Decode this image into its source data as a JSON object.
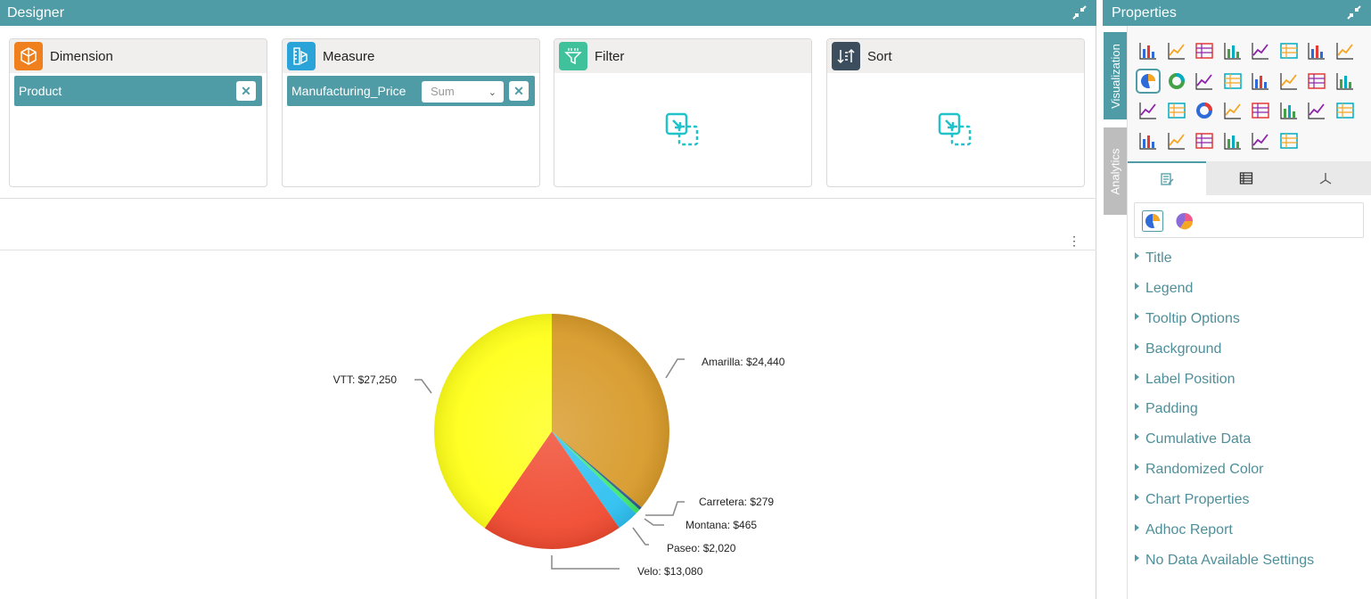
{
  "designer": {
    "title": "Designer",
    "wells": {
      "dimension": {
        "label": "Dimension",
        "field": "Product"
      },
      "measure": {
        "label": "Measure",
        "field": "Manufacturing_Price",
        "aggregate": "Sum"
      },
      "filter": {
        "label": "Filter"
      },
      "sort": {
        "label": "Sort"
      }
    },
    "remove_glyph": "✕",
    "kebab_glyph": "⋮"
  },
  "properties": {
    "title": "Properties",
    "side_tabs": [
      "Visualization",
      "Analytics"
    ],
    "items": [
      "Title",
      "Legend",
      "Tooltip Options",
      "Background",
      "Label Position",
      "Padding",
      "Cumulative Data",
      "Randomized Color",
      "Chart Properties",
      "Adhoc Report",
      "No Data Available Settings"
    ]
  },
  "colors": {
    "accent": "#4f9ca6",
    "dimension_icon": "#f07f1e",
    "measure_icon": "#2aa3d8",
    "filter_icon": "#3fc29b",
    "sort_icon": "#3c4e5e"
  },
  "chart_data": {
    "type": "pie",
    "categories": [
      "Amarilla",
      "Carretera",
      "Montana",
      "Paseo",
      "Velo",
      "VTT"
    ],
    "values": [
      24440,
      279,
      465,
      2020,
      13080,
      27250
    ],
    "labels": [
      "Amarilla: $24,440",
      "Carretera: $279",
      "Montana: $465",
      "Paseo: $2,020",
      "Velo: $13,080",
      "VTT: $27,250"
    ],
    "colors": [
      "#d89a2a",
      "#2f5d8a",
      "#3ee86a",
      "#2ec0f0",
      "#f04a30",
      "#ffff1a"
    ],
    "legend": false
  }
}
